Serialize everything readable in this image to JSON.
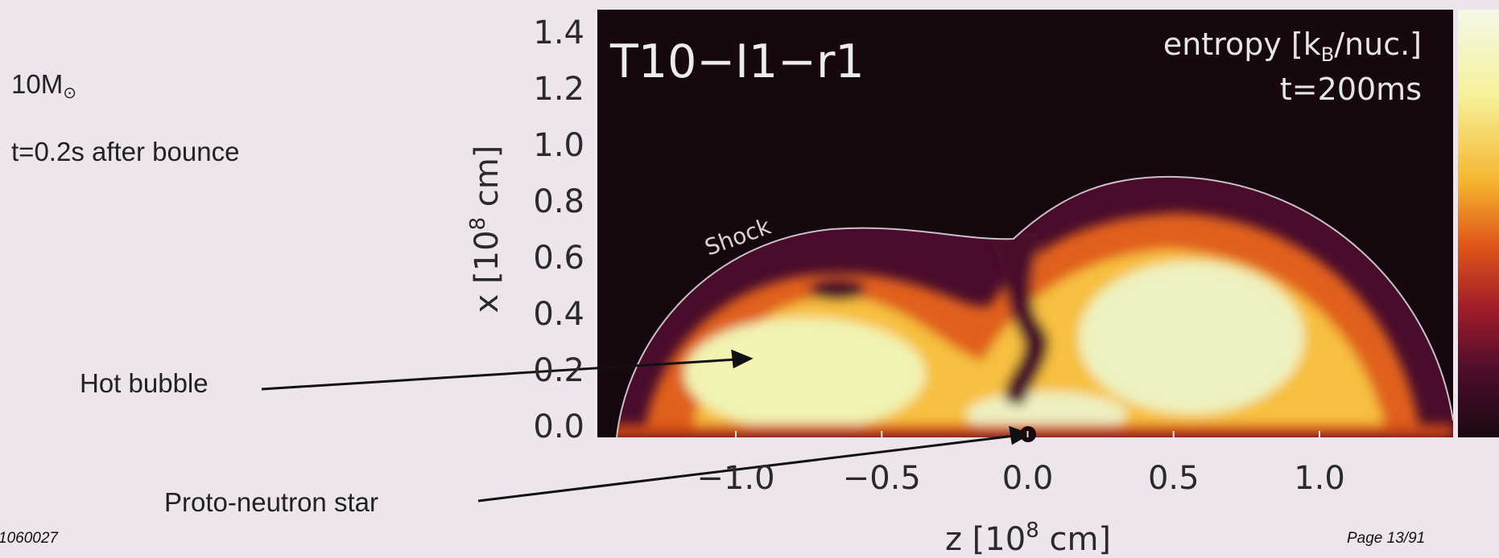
{
  "slide": {
    "mass": {
      "text": "10M",
      "sub": "⊙"
    },
    "time_note": "t=0.2s after bounce",
    "footer_id": "1060027",
    "page": "Page 13/91"
  },
  "annotations": {
    "hot_bubble": "Hot bubble",
    "proto_neutron_star": "Proto-neutron star",
    "shock": "Shock"
  },
  "plot": {
    "model": "T10−I1−r1",
    "quantity": {
      "text": "entropy [k",
      "sub": "B",
      "tail": "/nuc.]"
    },
    "time": "t=200ms",
    "y_axis": {
      "label": {
        "text": "x [10",
        "sup": "8",
        "tail": " cm]"
      },
      "ticks": [
        "1.4",
        "1.2",
        "1.0",
        "0.8",
        "0.6",
        "0.4",
        "0.2",
        "0.0"
      ]
    },
    "x_axis": {
      "label": {
        "text": "z [10",
        "sup": "8",
        "tail": " cm]"
      },
      "ticks": [
        "−1.0",
        "−0.5",
        "0.0",
        "0.5",
        "1.0"
      ]
    }
  }
}
